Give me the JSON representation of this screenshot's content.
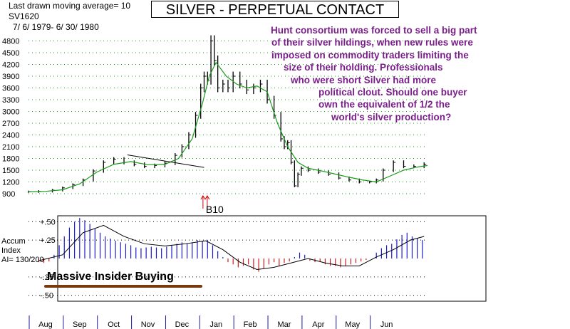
{
  "header": {
    "ma_label": "Last drawn moving average= 10",
    "symbol": "SV1620",
    "date_range": "7/ 6/ 1979- 6/ 30/ 1980"
  },
  "title": "SILVER - PERPETUAL CONTACT",
  "annotation_lines": [
    "Hunt consortium was forced to sell a big part",
    "of their silver hildings, when new rules were",
    "imposed on commodity traders limiting the",
    "size of their holding.  Professionals",
    "who were short Silver had more",
    "political clout.  Should one buyer",
    "own the equivalent of 1/2 the",
    "world's silver production?"
  ],
  "insider_label": "Massive Insider Buying",
  "signal_label": "B10",
  "accum_labels": [
    "Accum",
    "Index",
    "AI= 130/200"
  ],
  "colors": {
    "annotation": "#7a1f8a",
    "price": "#000000",
    "ma": "#1a9a1a",
    "positive": "#1c1cc8",
    "negative": "#cc1c1c",
    "signal": "#cc0000",
    "underline": "#7a3a10",
    "month_tick": "#1a1aa0"
  },
  "chart_data": [
    {
      "type": "line",
      "name": "price",
      "y_ticks": [
        900,
        1200,
        1500,
        1800,
        2100,
        2400,
        2700,
        3000,
        3300,
        3600,
        3900,
        4200,
        4500,
        4800
      ],
      "ylim": [
        900,
        4900
      ],
      "x_months": [
        "Aug",
        "Sep",
        "Oct",
        "Nov",
        "Dec",
        "Jan",
        "Feb",
        "Mar",
        "Apr",
        "May",
        "Jun"
      ],
      "x_range_months": [
        0,
        11.7
      ],
      "price": {
        "x": [
          0,
          0.3,
          0.7,
          1.0,
          1.3,
          1.6,
          1.9,
          2.2,
          2.5,
          2.8,
          3.1,
          3.4,
          3.7,
          4.0,
          4.3,
          4.5,
          4.7,
          4.9,
          5.05,
          5.15,
          5.25,
          5.35,
          5.45,
          5.55,
          5.7,
          5.85,
          6.0,
          6.2,
          6.4,
          6.6,
          6.8,
          7.0,
          7.2,
          7.4,
          7.5,
          7.6,
          7.7,
          7.8,
          7.9,
          8.0,
          8.2,
          8.5,
          8.8,
          9.1,
          9.4,
          9.7,
          10.0,
          10.2,
          10.4,
          10.7,
          11.0,
          11.3,
          11.6
        ],
        "close": [
          950,
          960,
          990,
          1050,
          1130,
          1250,
          1480,
          1700,
          1780,
          1700,
          1650,
          1600,
          1620,
          1680,
          1880,
          2100,
          2400,
          2900,
          3600,
          3900,
          3800,
          4800,
          4300,
          3600,
          3700,
          3600,
          3900,
          3700,
          3550,
          3600,
          3700,
          3300,
          2900,
          2300,
          2100,
          2200,
          1700,
          1100,
          1400,
          1550,
          1500,
          1450,
          1400,
          1300,
          1250,
          1200,
          1200,
          1250,
          1500,
          1700,
          1600,
          1600,
          1650
        ]
      },
      "moving_average": {
        "x": [
          0,
          0.5,
          1.0,
          1.5,
          2.0,
          2.5,
          3.0,
          3.5,
          4.0,
          4.4,
          4.8,
          5.1,
          5.3,
          5.5,
          5.8,
          6.1,
          6.4,
          6.7,
          7.0,
          7.3,
          7.6,
          7.9,
          8.2,
          8.6,
          9.0,
          9.4,
          9.8,
          10.2,
          10.6,
          11.0,
          11.4,
          11.7
        ],
        "values": [
          950,
          960,
          1000,
          1150,
          1450,
          1650,
          1720,
          1640,
          1650,
          1800,
          2300,
          3200,
          3900,
          4250,
          3900,
          3700,
          3600,
          3650,
          3500,
          2700,
          2100,
          1700,
          1550,
          1480,
          1400,
          1320,
          1250,
          1200,
          1350,
          1500,
          1580,
          1620
        ]
      },
      "trendline": {
        "x": [
          2.9,
          5.15
        ],
        "y": [
          1890,
          1570
        ]
      },
      "signals": [
        {
          "label": "B10",
          "x": 5.2
        }
      ]
    },
    {
      "type": "bar",
      "name": "accumulation-index",
      "y_ticks": [
        0.5,
        0.25,
        -0.25,
        -0.5
      ],
      "y_tick_labels": [
        "+.50",
        "+.25",
        "-.25",
        "-.50"
      ],
      "ylim": [
        -0.58,
        0.58
      ],
      "x": [
        0.3,
        0.45,
        0.6,
        0.75,
        0.9,
        1.05,
        1.2,
        1.35,
        1.5,
        1.65,
        1.8,
        1.95,
        2.1,
        2.25,
        2.4,
        2.55,
        2.7,
        2.85,
        3.0,
        3.15,
        3.3,
        3.45,
        3.6,
        3.75,
        3.9,
        4.05,
        4.2,
        4.35,
        4.5,
        4.65,
        4.8,
        4.95,
        5.1,
        5.25,
        5.4,
        5.55,
        5.7,
        5.85,
        6.0,
        6.15,
        6.3,
        6.45,
        6.6,
        6.75,
        6.9,
        7.05,
        7.2,
        7.35,
        7.5,
        7.65,
        7.8,
        7.95,
        8.1,
        8.25,
        8.4,
        8.55,
        8.7,
        8.85,
        9.0,
        9.15,
        9.3,
        9.45,
        9.6,
        9.75,
        9.9,
        10.05,
        10.2,
        10.35,
        10.5,
        10.65,
        10.8,
        10.95,
        11.1,
        11.25,
        11.4,
        11.55
      ],
      "values": [
        -0.05,
        -0.06,
        -0.04,
        0.05,
        0.18,
        0.3,
        0.42,
        0.5,
        0.55,
        0.52,
        0.47,
        0.4,
        0.35,
        0.3,
        0.27,
        0.24,
        0.22,
        0.2,
        0.18,
        0.15,
        0.14,
        0.15,
        0.16,
        0.15,
        0.14,
        0.16,
        0.18,
        0.2,
        0.22,
        0.2,
        0.22,
        0.25,
        0.24,
        0.25,
        0.18,
        0.1,
        0.02,
        -0.05,
        -0.08,
        -0.12,
        -0.1,
        -0.08,
        -0.15,
        -0.18,
        -0.14,
        -0.08,
        -0.05,
        -0.1,
        -0.06,
        -0.04,
        0.02,
        0.08,
        0.05,
        -0.03,
        -0.05,
        -0.04,
        -0.08,
        -0.1,
        -0.1,
        -0.12,
        -0.1,
        -0.08,
        -0.06,
        -0.04,
        -0.02,
        0.0,
        0.08,
        0.14,
        0.18,
        0.2,
        0.26,
        0.32,
        0.35,
        0.3,
        0.28,
        0.25
      ],
      "moving_average": {
        "x": [
          0.3,
          1.0,
          1.6,
          2.2,
          2.8,
          3.4,
          4.0,
          4.6,
          5.2,
          5.7,
          6.2,
          6.7,
          7.2,
          7.7,
          8.2,
          8.7,
          9.2,
          9.7,
          10.2,
          10.7,
          11.2,
          11.6
        ],
        "values": [
          -0.03,
          0.05,
          0.35,
          0.45,
          0.3,
          0.2,
          0.17,
          0.2,
          0.24,
          0.12,
          -0.05,
          -0.15,
          -0.12,
          -0.06,
          0.0,
          -0.06,
          -0.1,
          -0.1,
          0.02,
          0.12,
          0.25,
          0.3
        ]
      }
    }
  ]
}
